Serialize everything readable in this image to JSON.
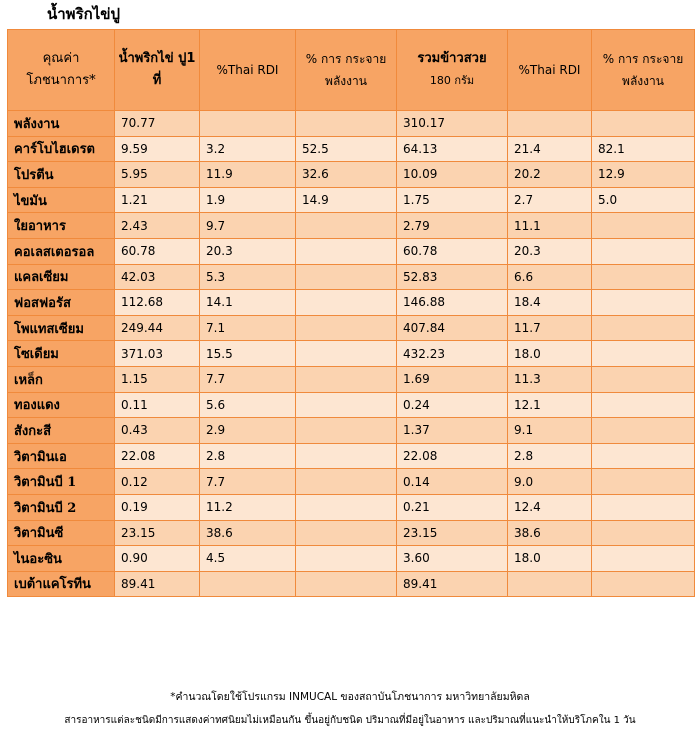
{
  "title": "น้ำพริกไข่ปู",
  "headers": {
    "nutrient": "คุณค่า โภชนาการ*",
    "food": "น้ำพริกไข่ ปู1 ที่",
    "rdi1": "%Thai RDI",
    "energy1": "% การ กระจาย พลังงาน",
    "rice_main": "รวมข้าวสวย",
    "rice_sub": "180 กรัม",
    "rdi2": "%Thai RDI",
    "energy2": "% การ กระจาย พลังงาน"
  },
  "rows": [
    [
      "พลังงาน",
      "70.77",
      "",
      "",
      "310.17",
      "",
      ""
    ],
    [
      "คาร์โบไฮเดรต",
      "9.59",
      "3.2",
      "52.5",
      "64.13",
      "21.4",
      "82.1"
    ],
    [
      "โปรตีน",
      "5.95",
      "11.9",
      "32.6",
      "10.09",
      "20.2",
      "12.9"
    ],
    [
      "ไขมัน",
      "1.21",
      "1.9",
      "14.9",
      "1.75",
      "2.7",
      "5.0"
    ],
    [
      "ใยอาหาร",
      "2.43",
      "9.7",
      "",
      "2.79",
      "11.1",
      ""
    ],
    [
      "คอเลสเตอรอล",
      "60.78",
      "20.3",
      "",
      "60.78",
      "20.3",
      ""
    ],
    [
      "แคลเซียม",
      "42.03",
      "5.3",
      "",
      "52.83",
      "6.6",
      ""
    ],
    [
      "ฟอสฟอรัส",
      "112.68",
      "14.1",
      "",
      "146.88",
      "18.4",
      ""
    ],
    [
      "โพแทสเซียม",
      "249.44",
      "7.1",
      "",
      "407.84",
      "11.7",
      ""
    ],
    [
      "โซเดียม",
      "371.03",
      "15.5",
      "",
      "432.23",
      "18.0",
      ""
    ],
    [
      "เหล็ก",
      "1.15",
      "7.7",
      "",
      "1.69",
      "11.3",
      ""
    ],
    [
      "ทองแดง",
      "0.11",
      "5.6",
      "",
      "0.24",
      "12.1",
      ""
    ],
    [
      "สังกะสี",
      "0.43",
      "2.9",
      "",
      "1.37",
      "9.1",
      ""
    ],
    [
      "วิตามินเอ",
      "22.08",
      "2.8",
      "",
      "22.08",
      "2.8",
      ""
    ],
    [
      "วิตามินบี 1",
      "0.12",
      "7.7",
      "",
      "0.14",
      "9.0",
      ""
    ],
    [
      "วิตามินบี 2",
      "0.19",
      "11.2",
      "",
      "0.21",
      "12.4",
      ""
    ],
    [
      "วิตามินซี",
      "23.15",
      "38.6",
      "",
      "23.15",
      "38.6",
      ""
    ],
    [
      "ไนอะซิน",
      "0.90",
      "4.5",
      "",
      "3.60",
      "18.0",
      ""
    ],
    [
      "เบต้าแคโรทีน",
      "89.41",
      "",
      "",
      "89.41",
      "",
      ""
    ]
  ],
  "footnote1": "*คำนวณโดยใช้โปรแกรม INMUCAL ของสถาบันโภชนาการ มหาวิทยาลัยมหิดล",
  "footnote2": "สารอาหารแต่ละชนิดมีการแสดงค่าทศนิยมไม่เหมือนกัน ขึ้นอยู่กับชนิด ปริมาณที่มีอยู่ในอาหาร และปริมาณที่แนะนำให้บริโภคใน 1 วัน"
}
